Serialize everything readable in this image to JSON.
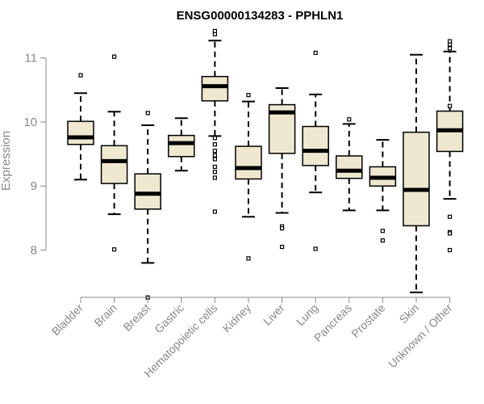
{
  "chart_data": {
    "type": "box",
    "title": "ENSG00000134283 - PPHLN1",
    "ylabel": "Expression",
    "xlabel": "",
    "ylim": [
      7.3,
      11.4
    ],
    "yticks": [
      8,
      9,
      10,
      11
    ],
    "box_fill": "#EEE8D0",
    "box_stroke": "#000000",
    "categories": [
      "Bladder",
      "Brain",
      "Breast",
      "Gastric",
      "Hematopoietic cells",
      "Kidney",
      "Liver",
      "Lung",
      "Pancreas",
      "Prostate",
      "Skin",
      "Unknown / Other"
    ],
    "boxes": [
      {
        "category": "Bladder",
        "whisker_low": 9.1,
        "q1": 9.65,
        "median": 9.76,
        "q3": 10.01,
        "whisker_high": 10.45,
        "outliers": [
          10.73
        ]
      },
      {
        "category": "Brain",
        "whisker_low": 8.56,
        "q1": 9.04,
        "median": 9.39,
        "q3": 9.63,
        "whisker_high": 10.16,
        "outliers": [
          11.02,
          8.01
        ]
      },
      {
        "category": "Breast",
        "whisker_low": 7.8,
        "q1": 8.64,
        "median": 8.88,
        "q3": 9.19,
        "whisker_high": 9.95,
        "outliers": [
          10.14,
          7.26
        ]
      },
      {
        "category": "Gastric",
        "whisker_low": 9.24,
        "q1": 9.46,
        "median": 9.67,
        "q3": 9.79,
        "whisker_high": 10.06,
        "outliers": []
      },
      {
        "category": "Hematopoietic cells",
        "whisker_low": 9.78,
        "q1": 10.33,
        "median": 10.56,
        "q3": 10.71,
        "whisker_high": 11.27,
        "outliers": [
          11.37,
          11.42,
          9.75,
          9.65,
          9.55,
          9.48,
          9.42,
          9.3,
          9.22,
          9.13,
          8.6
        ]
      },
      {
        "category": "Kidney",
        "whisker_low": 8.52,
        "q1": 9.11,
        "median": 9.28,
        "q3": 9.62,
        "whisker_high": 10.32,
        "outliers": [
          10.42,
          7.87
        ]
      },
      {
        "category": "Liver",
        "whisker_low": 8.58,
        "q1": 9.51,
        "median": 10.15,
        "q3": 10.27,
        "whisker_high": 10.53,
        "outliers": [
          8.37,
          8.34,
          8.05
        ]
      },
      {
        "category": "Lung",
        "whisker_low": 8.9,
        "q1": 9.32,
        "median": 9.55,
        "q3": 9.93,
        "whisker_high": 10.43,
        "outliers": [
          11.08,
          8.02
        ]
      },
      {
        "category": "Pancreas",
        "whisker_low": 8.62,
        "q1": 9.12,
        "median": 9.24,
        "q3": 9.47,
        "whisker_high": 9.97,
        "outliers": [
          10.04
        ]
      },
      {
        "category": "Prostate",
        "whisker_low": 8.62,
        "q1": 9.0,
        "median": 9.13,
        "q3": 9.3,
        "whisker_high": 9.72,
        "outliers": [
          8.3,
          8.15
        ]
      },
      {
        "category": "Skin",
        "whisker_low": 7.34,
        "q1": 8.38,
        "median": 8.94,
        "q3": 9.84,
        "whisker_high": 11.05,
        "outliers": []
      },
      {
        "category": "Unknown / Other",
        "whisker_low": 8.8,
        "q1": 9.54,
        "median": 9.87,
        "q3": 10.17,
        "whisker_high": 11.1,
        "outliers": [
          11.15,
          11.21,
          11.26,
          10.25,
          8.52,
          8.28,
          8.26,
          8.0
        ]
      }
    ]
  }
}
